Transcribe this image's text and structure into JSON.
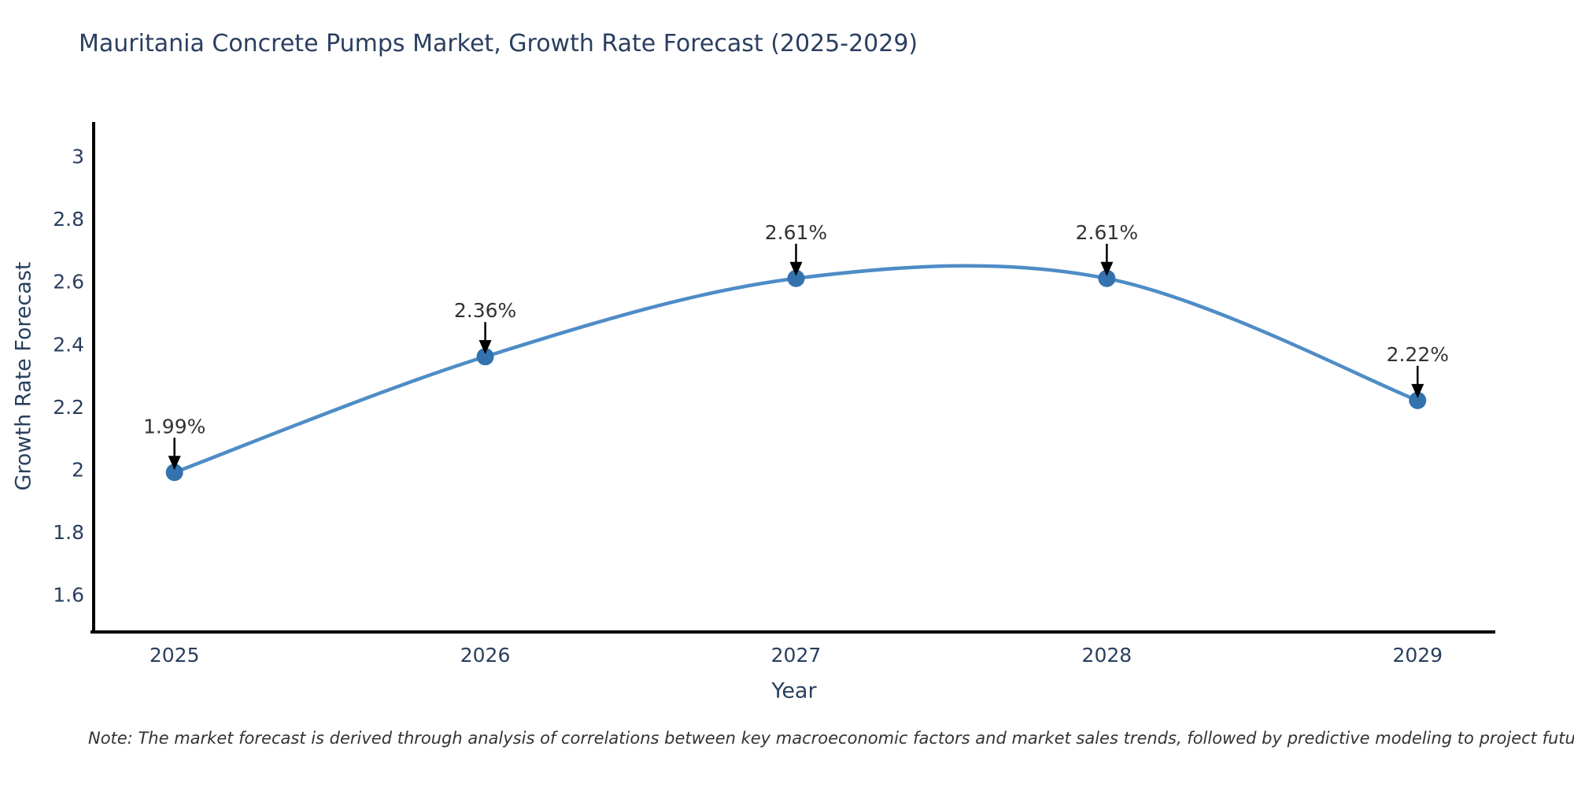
{
  "chart_data": {
    "type": "line",
    "title": "Mauritania Concrete Pumps Market, Growth Rate Forecast (2025-2029)",
    "xlabel": "Year",
    "ylabel": "Growth Rate Forecast",
    "x": [
      2025,
      2026,
      2027,
      2028,
      2029
    ],
    "values": [
      1.99,
      2.36,
      2.61,
      2.61,
      2.22
    ],
    "point_labels": [
      "1.99%",
      "2.36%",
      "2.61%",
      "2.61%",
      "2.22%"
    ],
    "xtick_labels": [
      "2025",
      "2026",
      "2027",
      "2028",
      "2029"
    ],
    "yticks": [
      1.6,
      1.8,
      2,
      2.2,
      2.4,
      2.6,
      2.8,
      3
    ],
    "ytick_labels": [
      "1.6",
      "1.8",
      "2",
      "2.2",
      "2.4",
      "2.6",
      "2.8",
      "3"
    ],
    "xlim": [
      2024.74,
      2029.25
    ],
    "ylim": [
      1.48,
      3.11
    ],
    "grid": false,
    "legend": "none",
    "line_style": "smooth-spline",
    "marker_style": "circle",
    "colors": {
      "line": "#4e8cc6",
      "marker": "#3372ad",
      "axis": "#000000",
      "title_text": "#2a3f5f",
      "tick_text": "#2a3f5f",
      "annotation_text": "#333333",
      "arrow": "#000000",
      "note_text": "#333333",
      "background": "#ffffff"
    },
    "note": "Note: The market forecast is derived through analysis of correlations between key macroeconomic factors and market sales trends, followed by predictive modeling to project future sales"
  }
}
